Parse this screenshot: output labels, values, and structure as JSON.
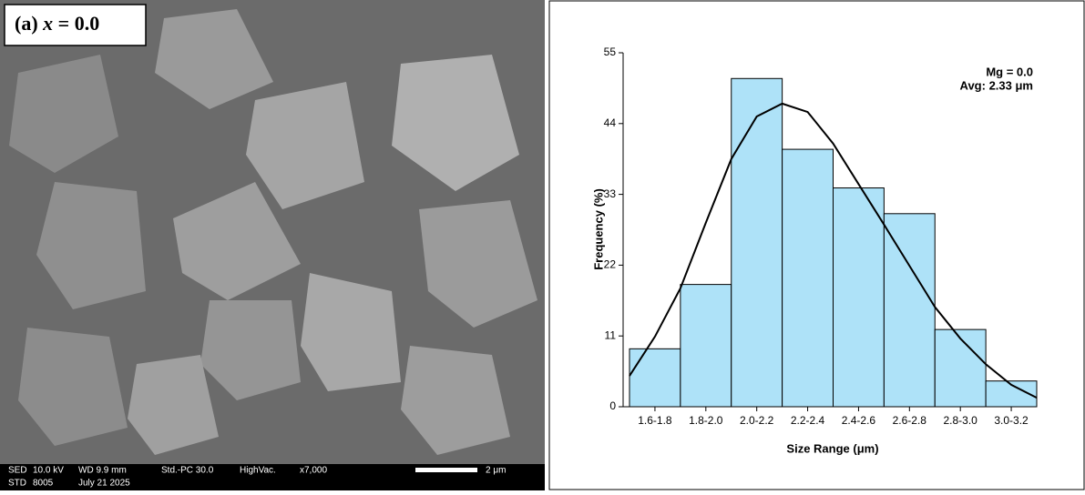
{
  "image": {
    "label_prefix": "(a)",
    "label_variable": "x",
    "label_value": "= 0.0",
    "info_line1": [
      "SED",
      "10.0 kV",
      "WD 9.9 mm",
      "Std.-PC 30.0",
      "HighVac.",
      "x7,000"
    ],
    "scale_bar": "2 μm",
    "info_line2": [
      "STD",
      "8005",
      "July 21 2025"
    ]
  },
  "chart_data": {
    "type": "histogram",
    "x_label": "Size Range (μm)",
    "y_label": "Frequency (%)",
    "annotations": [
      "Mg = 0.0",
      "Avg: 2.33 μm"
    ],
    "bins": [
      1.6,
      1.8,
      2.0,
      2.2,
      2.4,
      2.6,
      2.8,
      3.0,
      3.2
    ],
    "categories": [
      "1.6-1.8",
      "1.8-2.0",
      "2.0-2.2",
      "2.2-2.4",
      "2.4-2.6",
      "2.6-2.8",
      "2.8-3.0",
      "3.0-3.2"
    ],
    "values": [
      9,
      19,
      51,
      40,
      34,
      30,
      12,
      4
    ],
    "color": "#aee2f8",
    "fit": {
      "color": "#000000",
      "x": [
        1.6,
        1.7,
        1.8,
        1.9,
        2.0,
        2.1,
        2.2,
        2.3,
        2.4,
        2.5,
        2.6,
        2.7,
        2.8,
        2.9,
        3.0,
        3.1,
        3.2
      ],
      "values": [
        4.8,
        10.9,
        18.4,
        28.6,
        38.5,
        45.1,
        47.1,
        45.8,
        40.9,
        34.6,
        28.3,
        21.9,
        15.5,
        10.6,
        6.6,
        3.4,
        1.4
      ]
    },
    "xlim": [
      1.6,
      3.2
    ],
    "ylim": [
      0,
      55
    ],
    "yticks": [
      0,
      11,
      22,
      33,
      44,
      55
    ]
  }
}
